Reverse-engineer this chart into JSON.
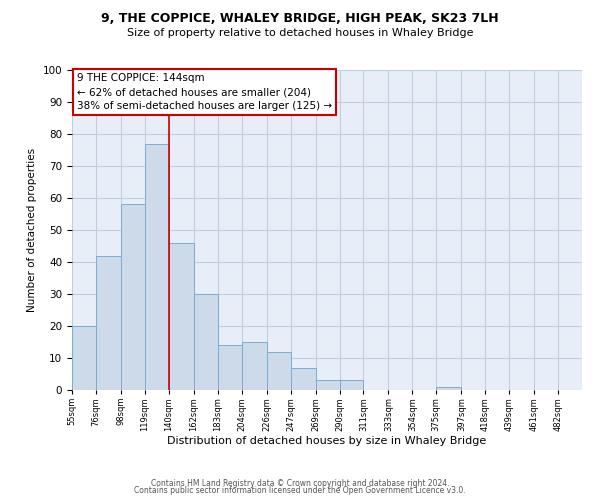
{
  "title1": "9, THE COPPICE, WHALEY BRIDGE, HIGH PEAK, SK23 7LH",
  "title2": "Size of property relative to detached houses in Whaley Bridge",
  "xlabel": "Distribution of detached houses by size in Whaley Bridge",
  "ylabel": "Number of detached properties",
  "bar_values": [
    20,
    42,
    58,
    77,
    46,
    30,
    14,
    15,
    12,
    7,
    3,
    3,
    0,
    0,
    0,
    1
  ],
  "bin_labels": [
    "55sqm",
    "76sqm",
    "98sqm",
    "119sqm",
    "140sqm",
    "162sqm",
    "183sqm",
    "204sqm",
    "226sqm",
    "247sqm",
    "269sqm",
    "290sqm",
    "311sqm",
    "333sqm",
    "354sqm",
    "375sqm",
    "397sqm",
    "418sqm",
    "439sqm",
    "461sqm",
    "482sqm"
  ],
  "bar_color": "#ccdaea",
  "bar_edge_color": "#7aadd4",
  "vline_x_idx": 4,
  "vline_color": "#cc0000",
  "annotation_line1": "9 THE COPPICE: 144sqm",
  "annotation_line2": "← 62% of detached houses are smaller (204)",
  "annotation_line3": "38% of semi-detached houses are larger (125) →",
  "ylim": [
    0,
    100
  ],
  "yticks": [
    0,
    10,
    20,
    30,
    40,
    50,
    60,
    70,
    80,
    90,
    100
  ],
  "grid_color": "#c0cfe0",
  "bg_color": "#e8eef7",
  "footer1": "Contains HM Land Registry data © Crown copyright and database right 2024.",
  "footer2": "Contains public sector information licensed under the Open Government Licence v3.0.",
  "bin_edges": [
    55,
    76,
    98,
    119,
    140,
    162,
    183,
    204,
    226,
    247,
    269,
    290,
    311,
    333,
    354,
    375,
    397,
    418,
    439,
    461,
    482
  ]
}
